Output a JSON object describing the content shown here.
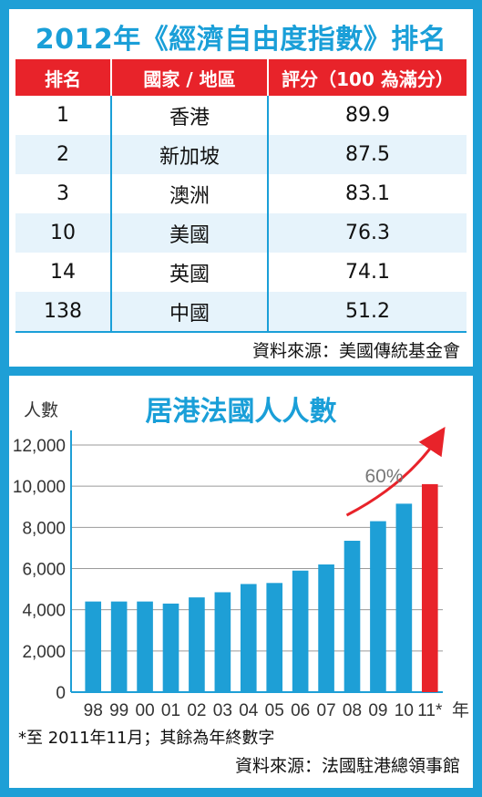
{
  "table": {
    "title": "2012年《經濟自由度指數》排名",
    "headers": [
      "排名",
      "國家 / 地區",
      "評分（100 為滿分）"
    ],
    "rows": [
      {
        "rank": "1",
        "region": "香港",
        "score": "89.9"
      },
      {
        "rank": "2",
        "region": "新加坡",
        "score": "87.5"
      },
      {
        "rank": "3",
        "region": "澳洲",
        "score": "83.1"
      },
      {
        "rank": "10",
        "region": "美國",
        "score": "76.3"
      },
      {
        "rank": "14",
        "region": "英國",
        "score": "74.1"
      },
      {
        "rank": "138",
        "region": "中國",
        "score": "51.2"
      }
    ],
    "source": "資料來源：美國傳統基金會"
  },
  "chart_data": {
    "type": "bar",
    "title": "居港法國人人數",
    "ylabel": "人數",
    "xlabel": "年",
    "categories": [
      "98",
      "99",
      "00",
      "01",
      "02",
      "03",
      "04",
      "05",
      "06",
      "07",
      "08",
      "09",
      "10",
      "11*"
    ],
    "values": [
      4400,
      4400,
      4400,
      4300,
      4600,
      4850,
      5250,
      5300,
      5900,
      6200,
      7350,
      8300,
      9150,
      10100
    ],
    "ylim": [
      0,
      12000
    ],
    "yticks": [
      0,
      2000,
      4000,
      6000,
      8000,
      10000,
      12000
    ],
    "ytick_labels": [
      "0",
      "2,000",
      "4,000",
      "6,000",
      "8,000",
      "10,000",
      "12,000"
    ],
    "bar_color": "#1e9fd6",
    "highlight_index": 13,
    "highlight_color": "#e8232a",
    "annotation": "60%",
    "grid": true
  },
  "footnote": "*至 2011年11月；其餘為年終數字",
  "chart_source": "資料來源：法國駐港總領事館"
}
